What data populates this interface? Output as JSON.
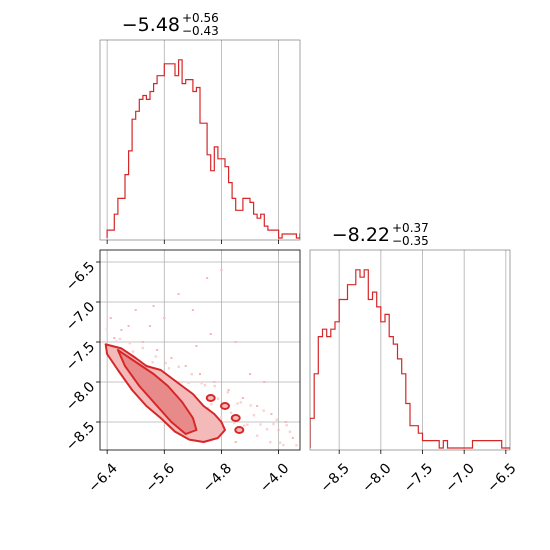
{
  "chart_data": [
    {
      "type": "histogram",
      "panel": "marginal-1",
      "title_value": "−5.48",
      "title_plus": "+0.56",
      "title_minus": "−0.43",
      "xlim": [
        -6.5,
        -3.7
      ],
      "grid": true,
      "color": "#d62728",
      "bin_edges_start": -6.4,
      "bin_width": 0.05,
      "counts": [
        2,
        2,
        6,
        10,
        10,
        16,
        22,
        30,
        32,
        35,
        36,
        35,
        37,
        39,
        41,
        41,
        44,
        44,
        44,
        41,
        45,
        39,
        40,
        40,
        37,
        38,
        29,
        29,
        21,
        17,
        23,
        20,
        20,
        18,
        14,
        10,
        7,
        7,
        10,
        10,
        9,
        6,
        5,
        6,
        3,
        2,
        2,
        2,
        0,
        1,
        1,
        1,
        1,
        0,
        1,
        0
      ]
    },
    {
      "type": "histogram",
      "panel": "marginal-2",
      "title_value": "−8.22",
      "title_plus": "+0.37",
      "title_minus": "−0.35",
      "xlim": [
        -8.85,
        -6.45
      ],
      "xticks": [
        "−8.5",
        "−8.0",
        "−7.5",
        "−7.0",
        "−6.5"
      ],
      "grid": true,
      "color": "#d62728",
      "bin_edges_start": -8.85,
      "bin_width": 0.05,
      "counts": [
        4,
        10,
        15,
        16,
        15,
        16,
        17,
        20,
        20,
        22,
        22,
        24,
        23,
        24,
        20,
        21,
        19,
        17,
        18,
        15,
        14,
        12,
        10,
        6,
        3,
        3,
        2,
        1,
        1,
        1,
        1,
        0,
        1,
        0,
        0,
        0,
        0,
        0,
        0,
        1,
        1,
        1,
        1,
        1,
        1,
        1,
        0,
        0
      ]
    },
    {
      "type": "contour",
      "panel": "joint",
      "xlim": [
        -6.5,
        -3.7
      ],
      "ylim": [
        -8.85,
        -6.35
      ],
      "xticks": [
        "−6.4",
        "−5.6",
        "−4.8",
        "−4.0"
      ],
      "yticks": [
        "−6.5",
        "−7.0",
        "−7.5",
        "−8.0",
        "−8.5"
      ],
      "grid": true,
      "color": "#d62728",
      "outer_contour": [
        [
          -6.42,
          -7.53
        ],
        [
          -6.2,
          -7.58
        ],
        [
          -6.0,
          -7.7
        ],
        [
          -5.85,
          -7.8
        ],
        [
          -5.65,
          -7.85
        ],
        [
          -5.5,
          -7.95
        ],
        [
          -5.35,
          -8.05
        ],
        [
          -5.2,
          -8.15
        ],
        [
          -5.05,
          -8.3
        ],
        [
          -4.9,
          -8.4
        ],
        [
          -4.8,
          -8.5
        ],
        [
          -4.75,
          -8.6
        ],
        [
          -4.85,
          -8.7
        ],
        [
          -5.05,
          -8.75
        ],
        [
          -5.25,
          -8.72
        ],
        [
          -5.45,
          -8.62
        ],
        [
          -5.65,
          -8.45
        ],
        [
          -5.85,
          -8.3
        ],
        [
          -6.05,
          -8.1
        ],
        [
          -6.25,
          -7.85
        ],
        [
          -6.4,
          -7.65
        ]
      ],
      "inner_contour": [
        [
          -6.25,
          -7.6
        ],
        [
          -6.0,
          -7.75
        ],
        [
          -5.75,
          -7.9
        ],
        [
          -5.55,
          -8.05
        ],
        [
          -5.35,
          -8.25
        ],
        [
          -5.2,
          -8.45
        ],
        [
          -5.15,
          -8.6
        ],
        [
          -5.3,
          -8.65
        ],
        [
          -5.5,
          -8.5
        ],
        [
          -5.7,
          -8.3
        ],
        [
          -5.95,
          -8.05
        ],
        [
          -6.15,
          -7.8
        ]
      ],
      "density_points": [
        [
          -6.3,
          -7.45
        ],
        [
          -6.1,
          -7.3
        ],
        [
          -5.9,
          -7.5
        ],
        [
          -5.7,
          -7.6
        ],
        [
          -5.5,
          -7.7
        ],
        [
          -5.3,
          -7.8
        ],
        [
          -5.1,
          -7.9
        ],
        [
          -4.9,
          -8.0
        ],
        [
          -4.7,
          -8.1
        ],
        [
          -4.5,
          -8.2
        ],
        [
          -4.3,
          -8.3
        ],
        [
          -4.1,
          -8.4
        ],
        [
          -3.9,
          -8.5
        ],
        [
          -5.4,
          -6.9
        ],
        [
          -5.0,
          -6.7
        ],
        [
          -4.8,
          -6.6
        ],
        [
          -5.2,
          -7.1
        ],
        [
          -4.6,
          -7.5
        ],
        [
          -4.4,
          -7.9
        ],
        [
          -6.0,
          -7.1
        ],
        [
          -6.35,
          -7.2
        ],
        [
          -5.8,
          -7.3
        ],
        [
          -5.6,
          -7.2
        ],
        [
          -4.95,
          -7.4
        ],
        [
          -4.2,
          -8.0
        ],
        [
          -4.0,
          -8.6
        ],
        [
          -3.8,
          -8.7
        ],
        [
          -4.5,
          -8.6
        ],
        [
          -4.6,
          -8.75
        ],
        [
          -5.15,
          -7.55
        ],
        [
          -5.75,
          -7.05
        ],
        [
          -6.2,
          -7.35
        ]
      ]
    }
  ]
}
